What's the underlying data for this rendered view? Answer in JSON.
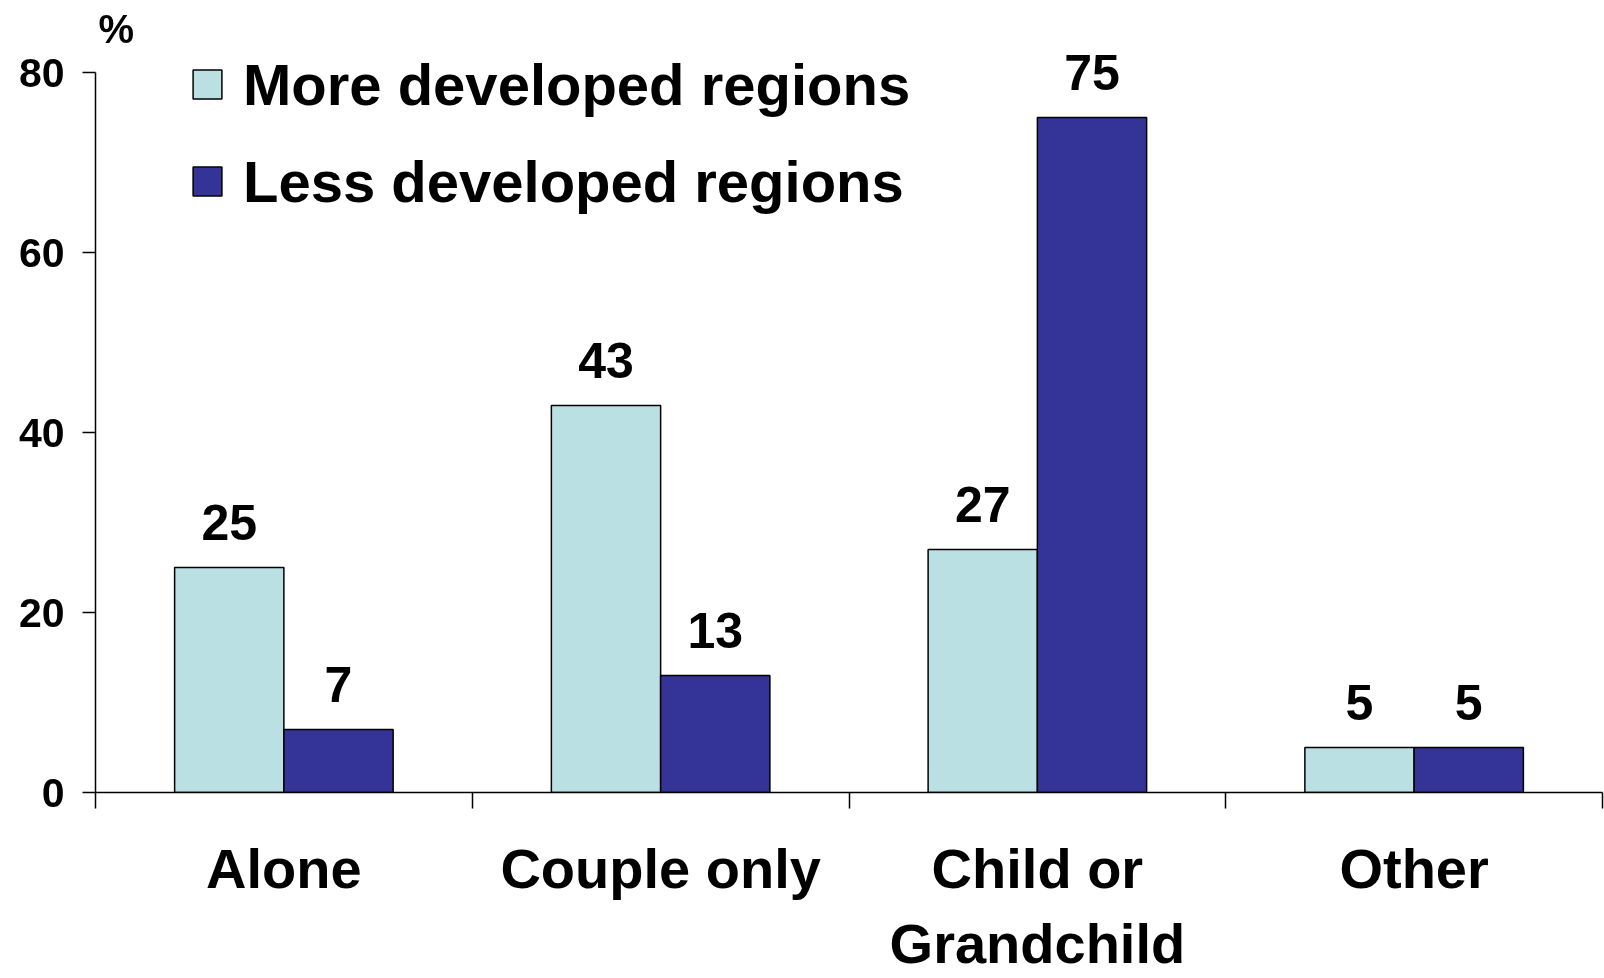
{
  "chart_data": {
    "type": "bar",
    "ylabel": "%",
    "categories": [
      "Alone",
      "Couple only",
      "Child or Grandchild",
      "Other"
    ],
    "series": [
      {
        "name": "More developed regions",
        "color": "#bae0e3",
        "values": [
          25,
          43,
          27,
          5
        ]
      },
      {
        "name": "Less developed regions",
        "color": "#343398",
        "values": [
          7,
          13,
          75,
          5
        ]
      }
    ],
    "ylim": [
      0,
      80
    ],
    "yticks": [
      0,
      20,
      40,
      60,
      80
    ],
    "legend": "top left",
    "data_labels": true
  }
}
